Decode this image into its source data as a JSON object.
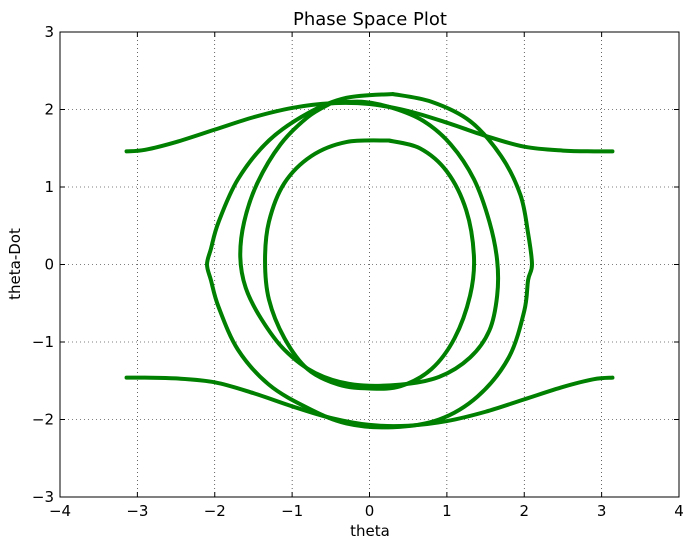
{
  "chart_data": {
    "type": "line",
    "title": "Phase Space Plot",
    "xlabel": "theta",
    "ylabel": "theta-Dot",
    "xlim": [
      -4,
      4
    ],
    "ylim": [
      -3,
      3
    ],
    "xticks": [
      "−4",
      "−3",
      "−2",
      "−1",
      "0",
      "1",
      "2",
      "3",
      "4"
    ],
    "yticks": [
      "−3",
      "−2",
      "−1",
      "0",
      "1",
      "2",
      "3"
    ],
    "grid": true,
    "line_color": "#008000",
    "series": [
      {
        "x": [
          -3.14,
          -2.9,
          -2.5,
          -2.0,
          -1.5,
          -1.0,
          -0.5,
          0.0,
          0.5,
          1.0,
          1.5,
          2.0,
          2.5,
          2.9,
          3.14
        ],
        "y": [
          1.46,
          1.48,
          1.58,
          1.74,
          1.9,
          2.02,
          2.08,
          2.07,
          1.98,
          1.83,
          1.66,
          1.52,
          1.47,
          1.46,
          1.46
        ]
      },
      {
        "x": [
          -3.14,
          -2.9,
          -2.5,
          -2.0,
          -1.5,
          -1.0,
          -0.5,
          0.0,
          0.5,
          1.0,
          1.5,
          2.0,
          2.5,
          2.9,
          3.14
        ],
        "y": [
          -1.46,
          -1.46,
          -1.47,
          -1.52,
          -1.66,
          -1.83,
          -1.98,
          -2.07,
          -2.08,
          -2.02,
          -1.9,
          -1.74,
          -1.58,
          -1.48,
          -1.46
        ]
      },
      {
        "x": [
          0.3,
          -0.3,
          -0.8,
          -1.3,
          -1.7,
          -1.95,
          -2.05,
          -2.1,
          -2.05,
          -1.95,
          -1.7,
          -1.3,
          -0.8,
          -0.3,
          0.3,
          0.9,
          1.4,
          1.8,
          2.0,
          2.05,
          2.1,
          2.05,
          1.95,
          1.7,
          1.3,
          0.8,
          0.3
        ],
        "y": [
          2.2,
          2.15,
          1.95,
          1.6,
          1.1,
          0.55,
          0.2,
          0.0,
          -0.2,
          -0.55,
          -1.1,
          -1.55,
          -1.85,
          -2.05,
          -2.1,
          -2.0,
          -1.7,
          -1.2,
          -0.6,
          -0.2,
          0.0,
          0.4,
          0.9,
          1.4,
          1.85,
          2.1,
          2.2
        ]
      },
      {
        "x": [
          -0.5,
          -0.1,
          0.3,
          0.7,
          1.05,
          1.35,
          1.55,
          1.65,
          1.65,
          1.55,
          1.3,
          0.9,
          0.4,
          -0.2,
          -0.7,
          -1.1,
          -1.4,
          -1.6,
          -1.67,
          -1.62,
          -1.45,
          -1.15,
          -0.8,
          -0.5
        ],
        "y": [
          2.08,
          2.1,
          2.02,
          1.85,
          1.55,
          1.1,
          0.55,
          0.05,
          -0.4,
          -0.85,
          -1.2,
          -1.45,
          -1.55,
          -1.55,
          -1.4,
          -1.1,
          -0.7,
          -0.3,
          0.1,
          0.55,
          1.05,
          1.55,
          1.9,
          2.08
        ]
      },
      {
        "x": [
          0.25,
          0.65,
          1.0,
          1.25,
          1.35,
          1.3,
          1.1,
          0.8,
          0.4,
          0.0,
          -0.4,
          -0.8,
          -1.1,
          -1.3,
          -1.35,
          -1.3,
          -1.1,
          -0.75,
          -0.3,
          0.25
        ],
        "y": [
          1.6,
          1.5,
          1.2,
          0.7,
          0.1,
          -0.4,
          -0.95,
          -1.35,
          -1.57,
          -1.6,
          -1.55,
          -1.35,
          -0.95,
          -0.45,
          0.05,
          0.55,
          1.05,
          1.4,
          1.58,
          1.6
        ]
      }
    ]
  }
}
